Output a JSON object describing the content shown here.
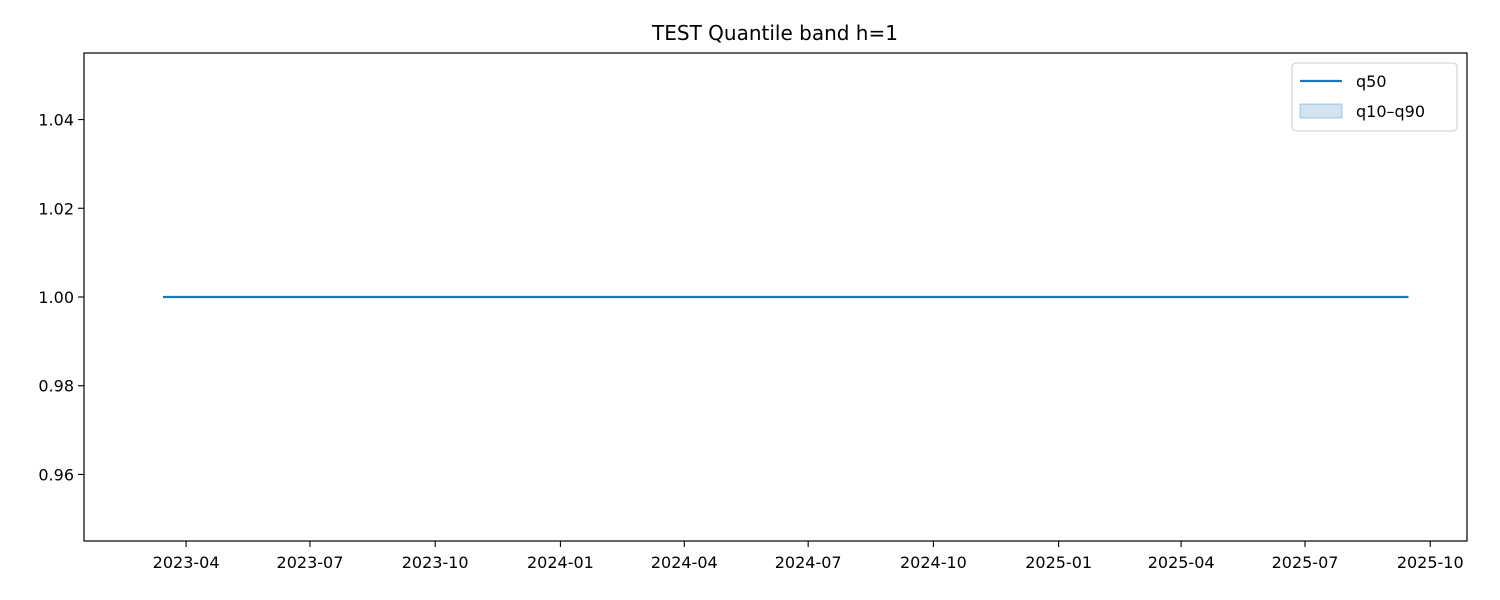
{
  "chart_data": {
    "type": "line",
    "title": "TEST Quantile band h=1",
    "xlabel": "",
    "ylabel": "",
    "x_axis_type": "date",
    "xlim": [
      "2023-01-16",
      "2025-10-28"
    ],
    "ylim": [
      0.945,
      1.055
    ],
    "x_ticks": [
      "2023-04",
      "2023-07",
      "2023-10",
      "2024-01",
      "2024-04",
      "2024-07",
      "2024-10",
      "2025-01",
      "2025-04",
      "2025-07",
      "2025-10"
    ],
    "y_ticks": [
      "0.96",
      "0.98",
      "1.00",
      "1.02",
      "1.04"
    ],
    "grid": false,
    "legend_position": "top-right",
    "series": [
      {
        "name": "q50",
        "kind": "line",
        "color": "#1f77b4",
        "x": [
          "2023-03-15",
          "2025-09-15"
        ],
        "y": [
          1.0,
          1.0
        ]
      },
      {
        "name": "q10–q90",
        "kind": "band",
        "color": "#1f77b4",
        "x": [
          "2023-03-15",
          "2025-09-15"
        ],
        "lower": [
          1.0,
          1.0
        ],
        "upper": [
          1.0,
          1.0
        ]
      }
    ]
  }
}
